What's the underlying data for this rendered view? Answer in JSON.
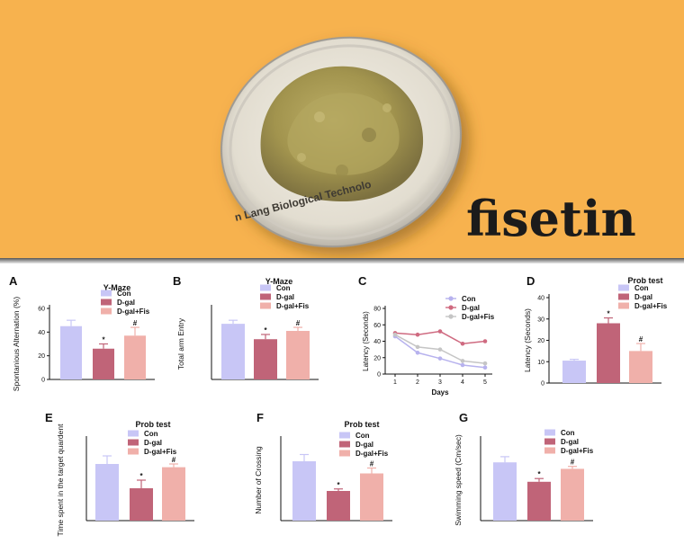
{
  "banner": {
    "title": "fisetin",
    "dish_text": "n Lang Biological Technolo",
    "colors": {
      "background": "#f7b24e",
      "powder": "#a89a52",
      "title_text": "#1b1b1b"
    }
  },
  "colors": {
    "con": "#c8c6f6",
    "dgal": "#c06478",
    "dgalfis": "#f0b0aa",
    "line_con": "#b7b2ee",
    "line_dgal": "#cf6a80",
    "line_dgalfis": "#c5c5c5"
  },
  "chart_data": [
    {
      "panel": "A",
      "type": "bar",
      "title": "Y-Maze",
      "ylabel": "Spontanious Alternation (%)",
      "ylim": [
        0,
        60
      ],
      "yticks": [
        "0",
        "20",
        "40",
        "60"
      ],
      "categories": [
        "Con",
        "D-gal",
        "D-gal+Fis"
      ],
      "values": [
        45,
        26,
        37
      ],
      "errors": [
        5,
        4,
        7
      ],
      "marks": [
        "",
        "*",
        "#"
      ]
    },
    {
      "panel": "B",
      "type": "bar",
      "title": "Y-Maze",
      "ylabel": "Total arm Entry",
      "ylim": [
        0,
        60
      ],
      "yticks": [],
      "categories": [
        "Con",
        "D-gal",
        "D-gal+Fis"
      ],
      "values": [
        47,
        34,
        41
      ],
      "errors": [
        3,
        4,
        3
      ],
      "marks": [
        "",
        "*",
        "#"
      ]
    },
    {
      "panel": "C",
      "type": "line",
      "title": "",
      "xlabel": "Days",
      "ylabel": "Latency (Seconds)",
      "ylim": [
        0,
        80
      ],
      "yticks": [
        "0",
        "20",
        "40",
        "60",
        "80"
      ],
      "x": [
        1,
        2,
        3,
        4,
        5
      ],
      "xticks": [
        "1",
        "2",
        "3",
        "4",
        "5"
      ],
      "series": [
        {
          "name": "Con",
          "values": [
            46,
            26,
            19,
            11,
            8
          ]
        },
        {
          "name": "D-gal",
          "values": [
            50,
            48,
            52,
            37,
            40
          ]
        },
        {
          "name": "D-gal+Fis",
          "values": [
            48,
            33,
            30,
            16,
            13
          ]
        }
      ]
    },
    {
      "panel": "D",
      "type": "bar",
      "title": "Prob test",
      "ylabel": "Latency (Seconds)",
      "ylim": [
        0,
        40
      ],
      "yticks": [
        "0",
        "10",
        "20",
        "30",
        "40"
      ],
      "categories": [
        "Con",
        "D-gal",
        "D-gal+Fis"
      ],
      "values": [
        10.5,
        28,
        15
      ],
      "errors": [
        0.6,
        2.5,
        3.5
      ],
      "marks": [
        "",
        "*",
        "#"
      ]
    },
    {
      "panel": "E",
      "type": "bar",
      "title": "Prob test",
      "ylabel": "Time spent in the target quardent",
      "ylim": [
        0,
        50
      ],
      "yticks": [],
      "categories": [
        "Con",
        "D-gal",
        "D-gal+Fis"
      ],
      "values": [
        35,
        20,
        33
      ],
      "errors": [
        5,
        5,
        2
      ],
      "marks": [
        "",
        "*",
        "#"
      ]
    },
    {
      "panel": "F",
      "type": "bar",
      "title": "Prob test",
      "ylabel": "Number of Crossing",
      "ylim": [
        0,
        6
      ],
      "yticks": [],
      "categories": [
        "Con",
        "D-gal",
        "D-gal+Fis"
      ],
      "values": [
        4.4,
        2.2,
        3.5
      ],
      "errors": [
        0.5,
        0.15,
        0.4
      ],
      "marks": [
        "",
        "*",
        "#"
      ]
    },
    {
      "panel": "G",
      "type": "bar",
      "title": "",
      "ylabel": "Swimming speed (Cm/sec)",
      "ylim": [
        0,
        50
      ],
      "yticks": [],
      "categories": [
        "Con",
        "D-gal",
        "D-gal+Fis"
      ],
      "values": [
        36,
        24,
        32
      ],
      "errors": [
        3.5,
        2,
        1.5
      ],
      "marks": [
        "",
        "*",
        "#"
      ]
    }
  ]
}
